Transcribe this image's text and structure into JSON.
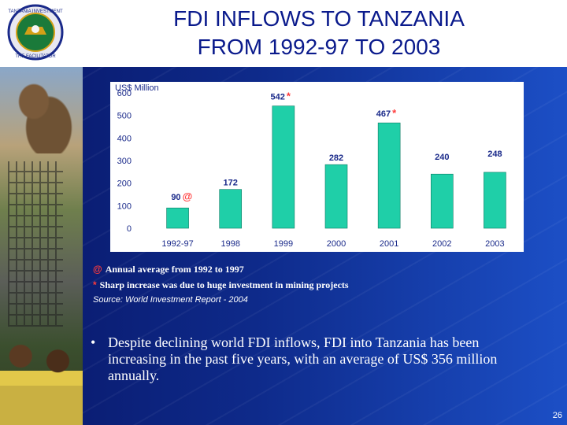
{
  "slide": {
    "title_line1": "FDI INFLOWS TO TANZANIA",
    "title_line2": "FROM 1992-97 TO 2003",
    "logo_text": "TANZANIA INVESTMENT CENTRE · THE FACILITATOR",
    "page_number": "26"
  },
  "notes": {
    "at_marker": "@",
    "at_text": "Annual average from 1992 to 1997",
    "star_marker": "*",
    "star_text": "Sharp increase was due to huge investment in mining projects",
    "source": "Source: World Investment Report - 2004"
  },
  "bullet": {
    "marker": "•",
    "text": "Despite declining world FDI inflows, FDI into Tanzania has been increasing in the past five years, with an average of US$ 356 million annually."
  },
  "colors": {
    "bar": "#1fcfa8",
    "title": "#0a1a8c",
    "marker": "#ff3b3b"
  },
  "chart_data": {
    "type": "bar",
    "unit_label": "US$ Million",
    "categories": [
      "1992-97",
      "1998",
      "1999",
      "2000",
      "2001",
      "2002",
      "2003"
    ],
    "values": [
      90,
      172,
      542,
      282,
      467,
      240,
      248
    ],
    "value_labels": [
      "90",
      "172",
      "542",
      "282",
      "467",
      "240",
      "248"
    ],
    "markers": [
      "@",
      "",
      "*",
      "",
      "*",
      "",
      ""
    ],
    "ylim": [
      0,
      600
    ],
    "yticks": [
      "0",
      "100",
      "200",
      "300",
      "400",
      "500",
      "600"
    ],
    "grid": false,
    "legend": "none"
  }
}
